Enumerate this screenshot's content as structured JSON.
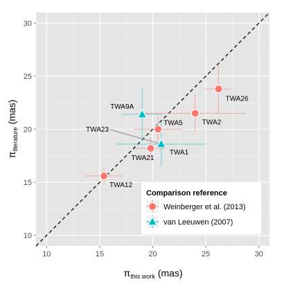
{
  "chart_data": {
    "type": "scatter",
    "xlabel": {
      "symbol": "π",
      "subscript": "this work",
      "unit": "(mas)"
    },
    "ylabel": {
      "symbol": "π",
      "subscript": "literature",
      "unit": "(mas)"
    },
    "xlim": [
      9,
      31
    ],
    "ylim": [
      9,
      31
    ],
    "x_ticks": [
      10,
      15,
      20,
      25,
      30
    ],
    "y_ticks": [
      10,
      15,
      20,
      25,
      30
    ],
    "grid": true,
    "reference_line": "y = x (dashed)",
    "legend": {
      "title": "Comparison reference",
      "placement": "bottom-right",
      "entries": [
        {
          "label": "Weinberger et al. (2013)",
          "marker": "circle",
          "color": "#f8766d"
        },
        {
          "label": "van Leeuwen (2007)",
          "marker": "triangle",
          "color": "#00bfc4"
        }
      ]
    },
    "series": [
      {
        "name": "Weinberger et al. (2013)",
        "marker": "circle",
        "color": "#f8766d",
        "points": [
          {
            "label": "TWA26",
            "x": 26.2,
            "y": 23.8,
            "xerr": 1.2,
            "yerr": 2.3
          },
          {
            "label": "TWA2",
            "x": 24.0,
            "y": 21.5,
            "xerr": 4.8,
            "yerr": 1.8
          },
          {
            "label": "TWA5",
            "x": 20.5,
            "y": 20.0,
            "xerr": 2.3,
            "yerr": 1.2
          },
          {
            "label": "TWA21",
            "x": 19.8,
            "y": 18.2,
            "xerr": 1.5,
            "yerr": 1.0
          },
          {
            "label": "TWA12",
            "x": 15.4,
            "y": 15.6,
            "xerr": 1.8,
            "yerr": 0.8
          }
        ]
      },
      {
        "name": "van Leeuwen (2007)",
        "marker": "triangle",
        "color": "#00bfc4",
        "points": [
          {
            "label": "TWA9A",
            "x": 19.0,
            "y": 21.4,
            "xerr": 1.9,
            "yerr": 2.5
          },
          {
            "label": "TWA1",
            "x": 20.8,
            "y": 18.6,
            "xerr": 4.2,
            "yerr": 2.1
          }
        ]
      }
    ],
    "label_offsets_note": "",
    "annotations": [
      {
        "text": "TWA26",
        "anchor": "TWA26"
      },
      {
        "text": "TWA2",
        "anchor": "TWA2"
      },
      {
        "text": "TWA5",
        "anchor": "TWA5"
      },
      {
        "text": "TWA21",
        "anchor": "TWA21"
      },
      {
        "text": "TWA12",
        "anchor": "TWA12"
      },
      {
        "text": "TWA9A",
        "anchor": "TWA9A"
      },
      {
        "text": "TWA1",
        "anchor": "TWA1"
      },
      {
        "text": "TWA23",
        "anchor": "TWA1"
      }
    ]
  }
}
